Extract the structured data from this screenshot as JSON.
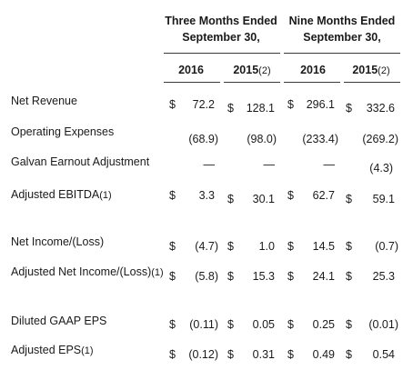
{
  "header": {
    "groups": [
      {
        "line1": "Three Months Ended",
        "line2": "September 30,"
      },
      {
        "line1": "Nine Months Ended",
        "line2": "September 30,"
      }
    ],
    "columns": [
      {
        "year": "2016",
        "note": ""
      },
      {
        "year": "2015",
        "note": "(2)"
      },
      {
        "year": "2016",
        "note": ""
      },
      {
        "year": "2015",
        "note": "(2)"
      }
    ]
  },
  "rows": [
    {
      "label": "Net Revenue",
      "note": "",
      "cells": [
        {
          "dollar": "$",
          "value": "72.2"
        },
        {
          "dollar": "$",
          "value": "128.1"
        },
        {
          "dollar": "$",
          "value": "296.1"
        },
        {
          "dollar": "$",
          "value": "332.6"
        }
      ]
    },
    {
      "label": "Operating Expenses",
      "note": "",
      "cells": [
        {
          "dollar": "",
          "value": "(68.9)"
        },
        {
          "dollar": "",
          "value": "(98.0)"
        },
        {
          "dollar": "",
          "value": "(233.4)"
        },
        {
          "dollar": "",
          "value": "(269.2)"
        }
      ]
    },
    {
      "label": "Galvan Earnout Adjustment",
      "note": "",
      "cells": [
        {
          "dollar": "",
          "value": "—"
        },
        {
          "dollar": "",
          "value": "—"
        },
        {
          "dollar": "",
          "value": "—"
        },
        {
          "dollar": "",
          "value": "(4.3)"
        }
      ]
    },
    {
      "label": "Adjusted EBITDA",
      "note": "(1)",
      "cells": [
        {
          "dollar": "$",
          "value": "3.3"
        },
        {
          "dollar": "$",
          "value": "30.1"
        },
        {
          "dollar": "$",
          "value": "62.7"
        },
        {
          "dollar": "$",
          "value": "59.1"
        }
      ]
    },
    {
      "label": "Net Income/(Loss)",
      "note": "",
      "cells": [
        {
          "dollar": "$",
          "value": "(4.7)"
        },
        {
          "dollar": "$",
          "value": "1.0"
        },
        {
          "dollar": "$",
          "value": "14.5"
        },
        {
          "dollar": "$",
          "value": "(0.7)"
        }
      ]
    },
    {
      "label": "Adjusted Net Income/(Loss)",
      "note": "(1)",
      "cells": [
        {
          "dollar": "$",
          "value": "(5.8)"
        },
        {
          "dollar": "$",
          "value": "15.3"
        },
        {
          "dollar": "$",
          "value": "24.1"
        },
        {
          "dollar": "$",
          "value": "25.3"
        }
      ]
    },
    {
      "label": "Diluted GAAP EPS",
      "note": "",
      "cells": [
        {
          "dollar": "$",
          "value": "(0.11)"
        },
        {
          "dollar": "$",
          "value": "0.05"
        },
        {
          "dollar": "$",
          "value": "0.25"
        },
        {
          "dollar": "$",
          "value": "(0.01)"
        }
      ]
    },
    {
      "label": "Adjusted EPS",
      "note": "(1)",
      "cells": [
        {
          "dollar": "$",
          "value": "(0.12)"
        },
        {
          "dollar": "$",
          "value": "0.31"
        },
        {
          "dollar": "$",
          "value": "0.49"
        },
        {
          "dollar": "$",
          "value": "0.54"
        }
      ]
    }
  ]
}
